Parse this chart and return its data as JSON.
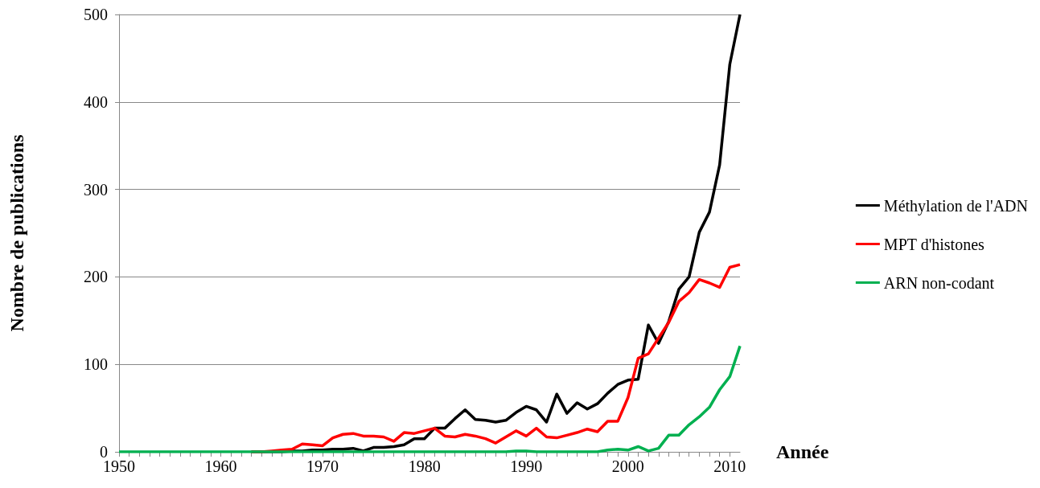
{
  "chart_data": {
    "type": "line",
    "xlabel": "Année",
    "ylabel": "Nombre de publications",
    "x": [
      1950,
      1951,
      1952,
      1953,
      1954,
      1955,
      1956,
      1957,
      1958,
      1959,
      1960,
      1961,
      1962,
      1963,
      1964,
      1965,
      1966,
      1967,
      1968,
      1969,
      1970,
      1971,
      1972,
      1973,
      1974,
      1975,
      1976,
      1977,
      1978,
      1979,
      1980,
      1981,
      1982,
      1983,
      1984,
      1985,
      1986,
      1987,
      1988,
      1989,
      1990,
      1991,
      1992,
      1993,
      1994,
      1995,
      1996,
      1997,
      1998,
      1999,
      2000,
      2001,
      2002,
      2003,
      2004,
      2005,
      2006,
      2007,
      2008,
      2009,
      2010,
      2011
    ],
    "xlim": [
      1950,
      2011
    ],
    "xticks": [
      1950,
      1960,
      1970,
      1980,
      1990,
      2000,
      2010
    ],
    "ylim": [
      0,
      500
    ],
    "yticks": [
      0,
      100,
      200,
      300,
      400,
      500
    ],
    "grid": "y",
    "legend": "right",
    "marker": "none",
    "line_style": "solid",
    "series": [
      {
        "name": "Méthylation de l'ADN",
        "color": "#000000",
        "values": [
          null,
          null,
          null,
          null,
          null,
          null,
          null,
          null,
          null,
          null,
          null,
          null,
          null,
          0,
          0,
          0,
          0,
          1,
          1,
          2,
          2,
          3,
          3,
          4,
          1,
          5,
          5,
          6,
          8,
          15,
          15,
          27,
          27,
          38,
          48,
          37,
          36,
          34,
          36,
          45,
          52,
          48,
          34,
          66,
          44,
          56,
          49,
          55,
          67,
          77,
          82,
          83,
          145,
          124,
          149,
          186,
          200,
          251,
          274,
          328,
          443,
          500
        ]
      },
      {
        "name": "MPT d'histones",
        "color": "#ff0000",
        "values": [
          null,
          null,
          null,
          null,
          null,
          null,
          null,
          null,
          null,
          null,
          null,
          null,
          null,
          0,
          0,
          1,
          2,
          3,
          9,
          8,
          7,
          16,
          20,
          21,
          18,
          18,
          17,
          12,
          22,
          21,
          24,
          27,
          18,
          17,
          20,
          18,
          15,
          10,
          17,
          24,
          18,
          27,
          17,
          16,
          19,
          22,
          26,
          23,
          35,
          35,
          62,
          107,
          112,
          130,
          148,
          172,
          182,
          197,
          193,
          188,
          211,
          214
        ]
      },
      {
        "name": "ARN non-codant",
        "color": "#00b050",
        "values": [
          0,
          0,
          0,
          0,
          0,
          0,
          0,
          0,
          0,
          0,
          0,
          0,
          0,
          0,
          0,
          0,
          0,
          0,
          0,
          0,
          0,
          0,
          0,
          0,
          0,
          0,
          0,
          0,
          0,
          0,
          0,
          0,
          0,
          0,
          0,
          0,
          0,
          0,
          0,
          1,
          1,
          0,
          0,
          0,
          0,
          0,
          0,
          0,
          2,
          3,
          2,
          6,
          1,
          4,
          19,
          19,
          31,
          40,
          51,
          71,
          86,
          121
        ]
      }
    ]
  }
}
